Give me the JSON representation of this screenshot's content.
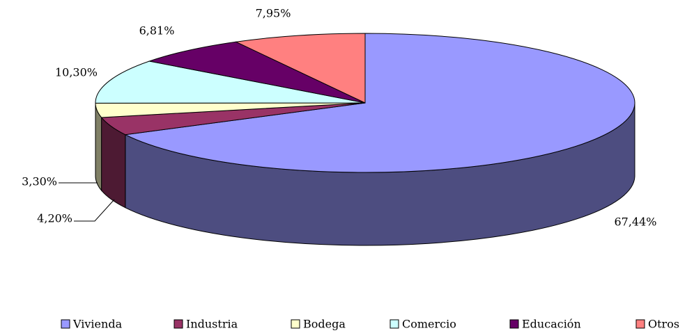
{
  "chart_data": {
    "type": "pie3d",
    "categories": [
      "Vivienda",
      "Industria",
      "Bodega",
      "Comercio",
      "Educación",
      "Otros"
    ],
    "values": [
      67.44,
      4.2,
      3.3,
      10.3,
      6.81,
      7.95
    ],
    "value_labels": [
      "67,44%",
      "4,20%",
      "3,30%",
      "10,30%",
      "6,81%",
      "7,95%"
    ],
    "colors": [
      "#9999ff",
      "#993366",
      "#ffffcc",
      "#ccffff",
      "#660066",
      "#ff8080"
    ],
    "legend": "bottom"
  }
}
